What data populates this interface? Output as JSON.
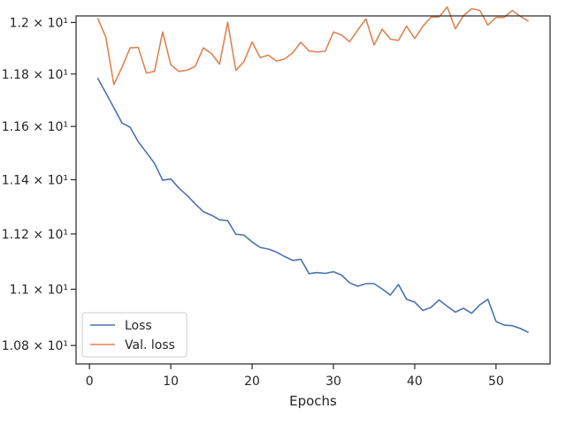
{
  "chart_data": {
    "type": "line",
    "title": "",
    "xlabel": "Epochs",
    "ylabel": "",
    "xlim": [
      -1.65,
      56.65
    ],
    "ylim": [
      10.7352,
      12.0258
    ],
    "yscale": "log",
    "grid": false,
    "legend_position": "lower-left",
    "x_ticks": [
      0,
      10,
      20,
      30,
      40,
      50
    ],
    "x_tick_labels": [
      "0",
      "10",
      "20",
      "30",
      "40",
      "50"
    ],
    "y_ticks": [
      10.8,
      11.0,
      11.2,
      11.4,
      11.6,
      11.8,
      12.0
    ],
    "y_tick_labels": [
      "1.08 × 10¹",
      "1.1 × 10¹",
      "1.12 × 10¹",
      "1.14 × 10¹",
      "1.16 × 10¹",
      "1.18 × 10¹",
      "1.2 × 10¹"
    ],
    "x": [
      1,
      2,
      3,
      4,
      5,
      6,
      7,
      8,
      9,
      10,
      11,
      12,
      13,
      14,
      15,
      16,
      17,
      18,
      19,
      20,
      21,
      22,
      23,
      24,
      25,
      26,
      27,
      28,
      29,
      30,
      31,
      32,
      33,
      34,
      35,
      36,
      37,
      38,
      39,
      40,
      41,
      42,
      43,
      44,
      45,
      46,
      47,
      48,
      49,
      50,
      51,
      52,
      53,
      54
    ],
    "series": [
      {
        "name": "Loss",
        "color": "#4c72b0",
        "values": [
          11.785,
          11.728,
          11.671,
          11.613,
          11.597,
          11.542,
          11.502,
          11.461,
          11.398,
          11.403,
          11.369,
          11.342,
          11.311,
          11.282,
          11.269,
          11.252,
          11.249,
          11.199,
          11.196,
          11.171,
          11.151,
          11.145,
          11.134,
          11.118,
          11.104,
          11.108,
          11.056,
          11.06,
          11.057,
          11.063,
          11.051,
          11.023,
          11.011,
          11.02,
          11.02,
          11.001,
          10.979,
          11.017,
          10.964,
          10.954,
          10.924,
          10.935,
          10.962,
          10.939,
          10.918,
          10.932,
          10.914,
          10.944,
          10.964,
          10.885,
          10.872,
          10.87,
          10.86,
          10.846
        ]
      },
      {
        "name": "Val. loss",
        "color": "#dd8452",
        "values": [
          12.017,
          11.944,
          11.759,
          11.826,
          11.901,
          11.903,
          11.804,
          11.81,
          11.963,
          11.836,
          11.81,
          11.815,
          11.829,
          11.901,
          11.879,
          11.838,
          12.001,
          11.814,
          11.848,
          11.924,
          11.863,
          11.873,
          11.85,
          11.858,
          11.882,
          11.923,
          11.889,
          11.885,
          11.888,
          11.963,
          11.951,
          11.925,
          11.971,
          12.014,
          11.912,
          11.974,
          11.935,
          11.93,
          11.986,
          11.937,
          11.985,
          12.021,
          12.022,
          12.061,
          11.975,
          12.027,
          12.054,
          12.048,
          11.99,
          12.02,
          12.02,
          12.047,
          12.024,
          12.005
        ]
      }
    ]
  }
}
